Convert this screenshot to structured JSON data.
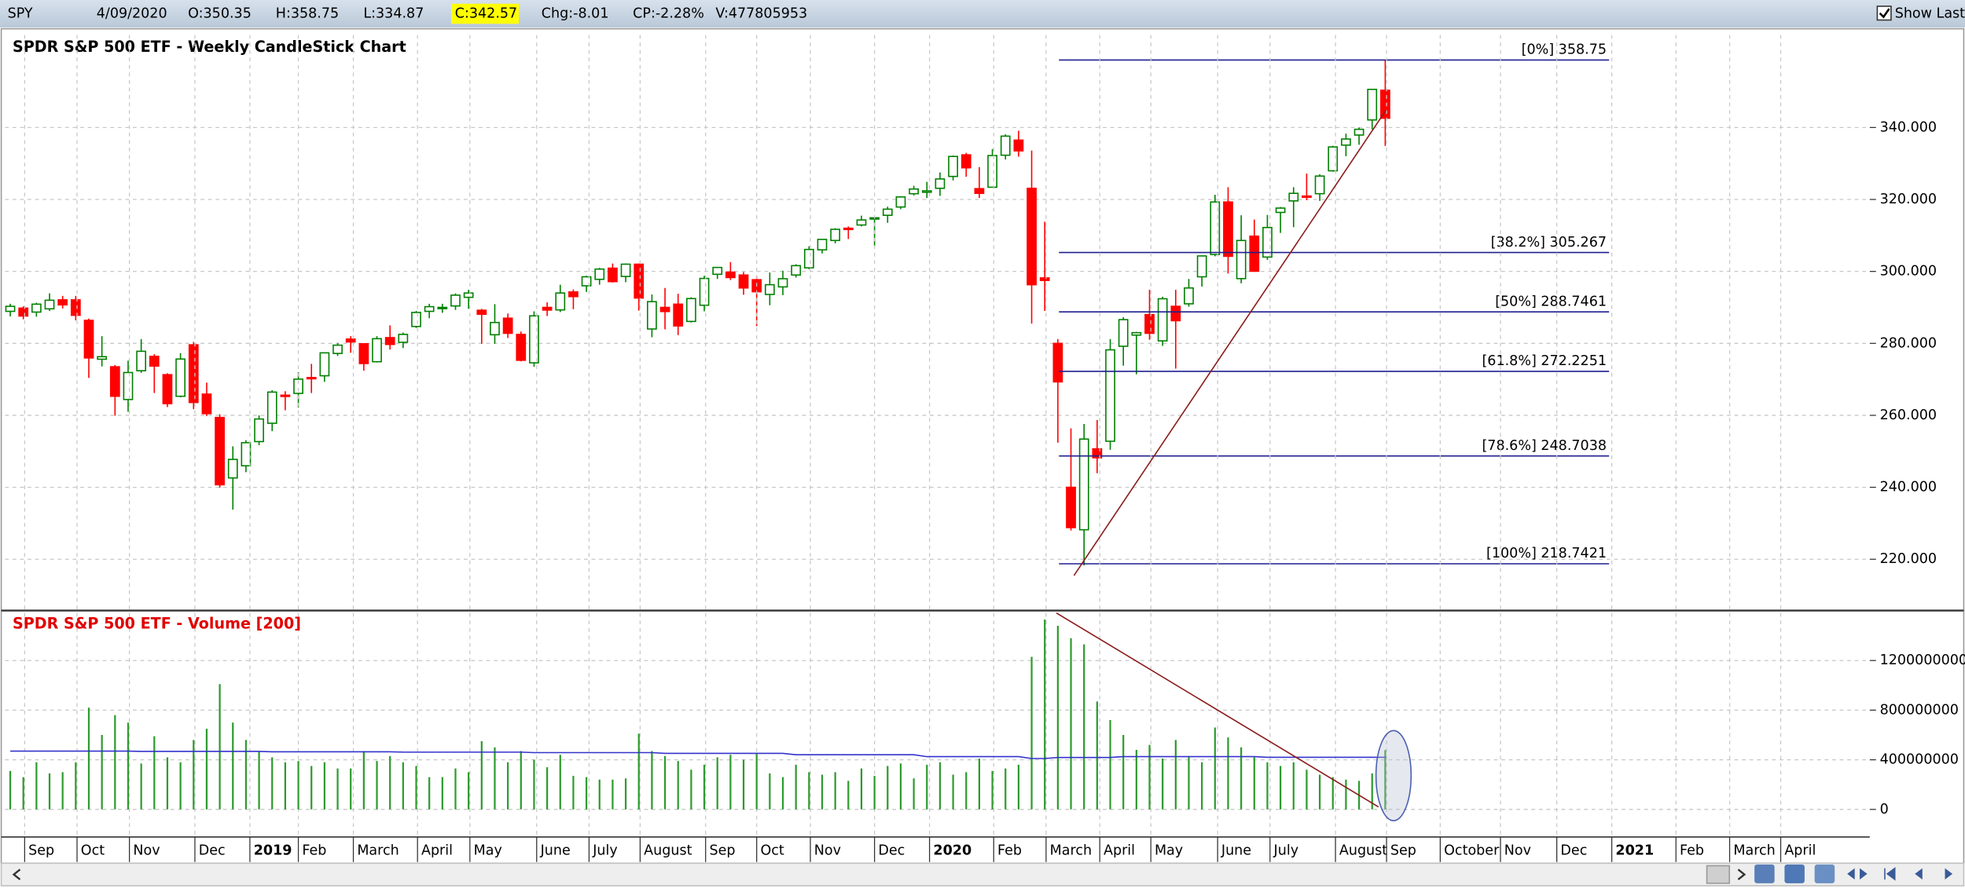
{
  "header": {
    "symbol": "SPY",
    "date": "4/09/2020",
    "open": "O:350.35",
    "high": "H:358.75",
    "low": "L:334.87",
    "close": "C:342.57",
    "change": "Chg:-8.01",
    "change_percent": "CP:-2.28%",
    "volume": "V:477805953",
    "show_last": "Show Last"
  },
  "chart_data": [
    {
      "type": "candlestick",
      "title": "SPDR S&P 500 ETF - Weekly CandleStick Chart",
      "up_color": "#008000",
      "down_color": "#ff0000",
      "grid": true,
      "xlim": [
        -0.4,
        142
      ],
      "ylim": [
        206.1,
        365.7
      ],
      "yticks": [
        {
          "value": 220,
          "label": "220.000"
        },
        {
          "value": 240,
          "label": "240.000"
        },
        {
          "value": 260,
          "label": "260.000"
        },
        {
          "value": 280,
          "label": "280.000"
        },
        {
          "value": 300,
          "label": "300.000"
        },
        {
          "value": 320,
          "label": "320.000"
        },
        {
          "value": 340,
          "label": "340.000"
        }
      ],
      "open": [
        288.9,
        289.8,
        288.7,
        289.6,
        292.1,
        292.1,
        286.4,
        275.6,
        273.5,
        264.4,
        272.4,
        276.4,
        271.3,
        265.3,
        279.6,
        265.9,
        259.4,
        242.6,
        245.98,
        252.7,
        257.8,
        265.6,
        266.1,
        270.5,
        271.0,
        277.2,
        281.2,
        279.9,
        274.9,
        281.6,
        280.3,
        284.7,
        288.9,
        290.0,
        290.4,
        292.8,
        289.2,
        282.4,
        287.0,
        282.5,
        274.6,
        290.0,
        289.3,
        294.3,
        296.0,
        297.8,
        300.9,
        298.6,
        302.0,
        284.0,
        290.0,
        290.9,
        286.1,
        290.6,
        299.2,
        299.8,
        299.0,
        297.7,
        293.6,
        295.7,
        299.0,
        301.0,
        306.0,
        308.6,
        312.0,
        312.9,
        314.6,
        315.6,
        317.9,
        321.6,
        322.0,
        323.1,
        326.4,
        332.4,
        323.0,
        323.4,
        332.3,
        336.5,
        323.1,
        298.2,
        280.0,
        240.0,
        228.2,
        250.7,
        252.8,
        279.2,
        282.3,
        288.0,
        280.7,
        290.3,
        291.0,
        298.5,
        304.7,
        319.3,
        298.0,
        309.8,
        303.99,
        316.4,
        319.6,
        320.95,
        321.6,
        327.97,
        335.1,
        337.9,
        342.1,
        350.35
      ],
      "high": [
        291.0,
        290.3,
        291.3,
        293.9,
        293.2,
        293.2,
        286.9,
        282.0,
        274.0,
        275.2,
        281.2,
        277.0,
        271.7,
        277.3,
        280.4,
        269.1,
        260.3,
        251.4,
        253.1,
        260.0,
        266.98,
        266.7,
        272.0,
        274.3,
        277.4,
        280.1,
        282.0,
        280.0,
        282.0,
        285.0,
        283.0,
        289.0,
        291.0,
        291.0,
        293.9,
        294.9,
        289.6,
        290.9,
        288.3,
        283.3,
        288.9,
        291.4,
        296.3,
        295.0,
        298.8,
        301.0,
        302.2,
        302.2,
        302.2,
        293.6,
        295.4,
        293.8,
        292.8,
        298.8,
        301.2,
        302.6,
        299.8,
        298.7,
        299.7,
        300.2,
        302.0,
        307.0,
        309.0,
        312.0,
        312.5,
        315.5,
        315.0,
        318.0,
        320.9,
        323.8,
        324.9,
        327.5,
        332.2,
        332.95,
        329.0,
        334.0,
        338.1,
        339.1,
        333.6,
        313.8,
        281.2,
        256.4,
        257.6,
        258.7,
        281.2,
        287.3,
        283.2,
        294.9,
        292.95,
        294.9,
        297.9,
        304.3,
        321.3,
        323.4,
        315.6,
        314.4,
        315.7,
        317.9,
        323.4,
        327.2,
        327.0,
        334.9,
        338.3,
        340.0,
        350.7,
        358.75
      ],
      "low": [
        287.5,
        286.7,
        287.4,
        289.0,
        289.7,
        286.4,
        270.4,
        273.6,
        259.9,
        261.0,
        271.8,
        266.2,
        262.3,
        265.0,
        261.7,
        259.8,
        239.9,
        233.8,
        244.2,
        251.7,
        255.6,
        261.4,
        262.2,
        266.2,
        269.3,
        276.5,
        277.4,
        272.4,
        274.7,
        278.3,
        278.7,
        284.3,
        287.0,
        288.5,
        289.3,
        289.6,
        279.9,
        279.9,
        281.5,
        275.0,
        273.5,
        287.6,
        288.7,
        289.5,
        294.3,
        296.3,
        296.9,
        297.0,
        289.1,
        281.7,
        283.9,
        282.3,
        285.8,
        288.9,
        297.9,
        297.6,
        293.5,
        284.8,
        290.6,
        293.4,
        298.3,
        300.6,
        305.0,
        307.8,
        309.0,
        312.5,
        307.0,
        313.5,
        317.3,
        321.1,
        320.4,
        321.0,
        325.3,
        326.3,
        320.4,
        323.4,
        331.1,
        331.9,
        285.5,
        289.0,
        252.4,
        228.0,
        218.3,
        243.9,
        250.4,
        273.8,
        271.4,
        281.0,
        279.3,
        272.99,
        290.2,
        295.8,
        304.2,
        299.4,
        296.7,
        299.9,
        303.2,
        310.7,
        312.3,
        319.8,
        319.6,
        327.7,
        332.0,
        335.2,
        339.5,
        334.87
      ],
      "close": [
        290.3,
        287.6,
        290.9,
        291.99,
        290.7,
        287.8,
        275.95,
        276.3,
        265.3,
        271.9,
        277.8,
        273.7,
        263.25,
        275.65,
        263.57,
        260.47,
        240.7,
        247.75,
        252.4,
        258.98,
        266.46,
        265.3,
        270.06,
        270.47,
        277.37,
        279.5,
        280.4,
        274.4,
        281.3,
        279.7,
        282.5,
        288.6,
        290.2,
        290.0,
        293.4,
        294.0,
        288.1,
        285.8,
        282.8,
        275.3,
        287.65,
        289.26,
        294.0,
        293.0,
        298.5,
        300.65,
        297.17,
        302.01,
        292.6,
        291.6,
        288.85,
        284.85,
        292.45,
        298.05,
        301.1,
        298.3,
        295.4,
        294.35,
        296.3,
        297.97,
        301.6,
        306.1,
        308.9,
        311.7,
        311.8,
        314.3,
        314.9,
        317.3,
        320.7,
        322.9,
        322.4,
        325.7,
        331.95,
        328.8,
        321.7,
        332.2,
        337.6,
        333.5,
        296.3,
        297.5,
        269.3,
        228.8,
        253.4,
        248.2,
        278.2,
        286.6,
        282.97,
        282.8,
        292.4,
        286.3,
        295.4,
        304.3,
        319.3,
        304.2,
        308.6,
        300.05,
        312.2,
        317.6,
        321.7,
        320.9,
        326.5,
        334.6,
        336.8,
        339.5,
        350.6,
        342.57
      ],
      "fib_color": "#1f1f8f",
      "fib_levels": [
        {
          "value": 358.75,
          "label": "[0%] 358.75"
        },
        {
          "value": 305.267,
          "label": "[38.2%] 305.267"
        },
        {
          "value": 288.7461,
          "label": "[50%] 288.7461"
        },
        {
          "value": 272.2251,
          "label": "[61.8%] 272.2251"
        },
        {
          "value": 248.7038,
          "label": "[78.6%] 248.7038"
        },
        {
          "value": 218.7421,
          "label": "[100%] 218.7421"
        }
      ]
    },
    {
      "type": "bar",
      "title": "SPDR S&P 500 ETF - Volume [200]",
      "color": "#2e9b2e",
      "average_color": "#3333cc",
      "grid": true,
      "xlim": [
        -0.4,
        142
      ],
      "ylim": [
        -212000000,
        1593000000
      ],
      "yticks": [
        0,
        400000000,
        800000000,
        1200000000
      ],
      "xticks": [
        {
          "value": 1.1,
          "label": "Sep"
        },
        {
          "value": 5.1,
          "label": "Oct"
        },
        {
          "value": 9.1,
          "label": "Nov"
        },
        {
          "value": 14.1,
          "label": "Dec"
        },
        {
          "value": 18.3,
          "label": "2019"
        },
        {
          "value": 22.0,
          "label": "Feb"
        },
        {
          "value": 26.2,
          "label": "March"
        },
        {
          "value": 31.1,
          "label": "April"
        },
        {
          "value": 35.1,
          "label": "May"
        },
        {
          "value": 40.2,
          "label": "June"
        },
        {
          "value": 44.2,
          "label": "July"
        },
        {
          "value": 48.1,
          "label": "August"
        },
        {
          "value": 53.1,
          "label": "Sep"
        },
        {
          "value": 57.0,
          "label": "Oct"
        },
        {
          "value": 61.1,
          "label": "Nov"
        },
        {
          "value": 66.0,
          "label": "Dec"
        },
        {
          "value": 70.2,
          "label": "2020"
        },
        {
          "value": 75.1,
          "label": "Feb"
        },
        {
          "value": 79.1,
          "label": "March"
        },
        {
          "value": 83.2,
          "label": "April"
        },
        {
          "value": 87.1,
          "label": "May"
        },
        {
          "value": 92.2,
          "label": "June"
        },
        {
          "value": 96.2,
          "label": "July"
        },
        {
          "value": 101.2,
          "label": "August"
        },
        {
          "value": 105.1,
          "label": "Sep"
        },
        {
          "value": 109.2,
          "label": "October"
        },
        {
          "value": 113.8,
          "label": "Nov"
        },
        {
          "value": 118.1,
          "label": "Dec"
        },
        {
          "value": 122.3,
          "label": "2021"
        },
        {
          "value": 127.2,
          "label": "Feb"
        },
        {
          "value": 131.3,
          "label": "March"
        },
        {
          "value": 135.2,
          "label": "April"
        }
      ],
      "values": [
        310000000,
        260000000,
        380000000,
        290000000,
        300000000,
        380000000,
        820000000,
        600000000,
        760000000,
        700000000,
        370000000,
        590000000,
        420000000,
        380000000,
        560000000,
        650000000,
        1010000000,
        700000000,
        560000000,
        470000000,
        420000000,
        380000000,
        390000000,
        350000000,
        380000000,
        330000000,
        330000000,
        470000000,
        390000000,
        430000000,
        380000000,
        350000000,
        260000000,
        260000000,
        330000000,
        300000000,
        550000000,
        500000000,
        380000000,
        470000000,
        400000000,
        340000000,
        440000000,
        270000000,
        260000000,
        240000000,
        240000000,
        250000000,
        610000000,
        470000000,
        430000000,
        390000000,
        320000000,
        360000000,
        420000000,
        440000000,
        400000000,
        450000000,
        290000000,
        260000000,
        360000000,
        300000000,
        280000000,
        300000000,
        230000000,
        330000000,
        270000000,
        350000000,
        370000000,
        250000000,
        360000000,
        380000000,
        280000000,
        300000000,
        410000000,
        310000000,
        330000000,
        360000000,
        1230000000,
        1530000000,
        1480000000,
        1380000000,
        1330000000,
        870000000,
        720000000,
        600000000,
        480000000,
        520000000,
        410000000,
        560000000,
        430000000,
        380000000,
        660000000,
        580000000,
        500000000,
        420000000,
        380000000,
        350000000,
        380000000,
        320000000,
        280000000,
        260000000,
        240000000,
        230000000,
        290000000,
        477805953
      ],
      "average": [
        470000000,
        470000000,
        470000000,
        470000000,
        470000000,
        470000000,
        470000000,
        470000000,
        470000000,
        470000000,
        468000000,
        468000000,
        468000000,
        468000000,
        468000000,
        468000000,
        468000000,
        468000000,
        468000000,
        468000000,
        465000000,
        465000000,
        465000000,
        465000000,
        465000000,
        465000000,
        465000000,
        465000000,
        465000000,
        465000000,
        462000000,
        462000000,
        462000000,
        462000000,
        462000000,
        462000000,
        462000000,
        462000000,
        462000000,
        462000000,
        458000000,
        458000000,
        458000000,
        458000000,
        458000000,
        458000000,
        458000000,
        458000000,
        458000000,
        458000000,
        452000000,
        452000000,
        452000000,
        452000000,
        452000000,
        452000000,
        452000000,
        452000000,
        452000000,
        452000000,
        440000000,
        440000000,
        440000000,
        440000000,
        440000000,
        440000000,
        440000000,
        440000000,
        440000000,
        440000000,
        425000000,
        425000000,
        425000000,
        425000000,
        425000000,
        425000000,
        425000000,
        425000000,
        410000000,
        410000000,
        418000000,
        418000000,
        418000000,
        418000000,
        418000000,
        425000000,
        425000000,
        425000000,
        425000000,
        425000000,
        425000000,
        425000000,
        425000000,
        425000000,
        425000000,
        425000000,
        420000000,
        420000000,
        420000000,
        420000000,
        420000000,
        420000000,
        420000000,
        420000000,
        420000000,
        420000000
      ]
    }
  ]
}
